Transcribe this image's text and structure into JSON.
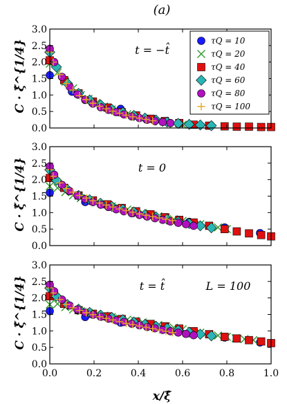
{
  "figure": {
    "title": "(a)",
    "xlabel": "x/ξ̂",
    "ylabel": "C · ξ̂^{1/4}"
  },
  "chart_data": [
    {
      "type": "scatter",
      "annotation": "t = −t̂",
      "xlim": [
        0.0,
        1.0
      ],
      "ylim": [
        0.0,
        3.0
      ],
      "xticks": [],
      "yticks": [
        "0.0",
        "0.5",
        "1.0",
        "1.5",
        "2.0",
        "2.5",
        "3.0"
      ],
      "legend_position": "top-right",
      "series": [
        {
          "name": "τQ = 10",
          "color": "#1a1aff",
          "marker": "circle",
          "x": [
            0.0,
            0.1,
            0.16,
            0.32,
            0.47
          ],
          "y": [
            1.6,
            1.1,
            0.85,
            0.58,
            0.27
          ]
        },
        {
          "name": "τQ = 20",
          "color": "#2a9a2a",
          "marker": "x",
          "x": [
            0.0,
            0.035,
            0.07,
            0.105,
            0.14,
            0.175,
            0.21,
            0.245,
            0.28,
            0.315,
            0.35,
            0.385,
            0.42,
            0.455,
            0.49,
            0.525,
            0.56,
            0.6
          ],
          "y": [
            1.95,
            1.68,
            1.4,
            1.2,
            1.0,
            0.88,
            0.76,
            0.65,
            0.56,
            0.48,
            0.42,
            0.36,
            0.31,
            0.25,
            0.2,
            0.16,
            0.13,
            0.1
          ]
        },
        {
          "name": "τQ = 40",
          "color": "#e01010",
          "marker": "square",
          "x": [
            0.0,
            0.065,
            0.13,
            0.195,
            0.26,
            0.325,
            0.39,
            0.455,
            0.52,
            0.585,
            0.65,
            0.72,
            0.79,
            0.845,
            0.9,
            0.955,
            1.0
          ],
          "y": [
            2.05,
            1.45,
            1.05,
            0.8,
            0.62,
            0.48,
            0.38,
            0.28,
            0.21,
            0.15,
            0.1,
            0.07,
            0.05,
            0.04,
            0.04,
            0.03,
            0.03
          ]
        },
        {
          "name": "τQ = 60",
          "color": "#2ab5b5",
          "marker": "diamond",
          "x": [
            0.0,
            0.03,
            0.08,
            0.13,
            0.18,
            0.23,
            0.28,
            0.33,
            0.38,
            0.43,
            0.48,
            0.53,
            0.58,
            0.63,
            0.68,
            0.73
          ],
          "y": [
            2.3,
            1.85,
            1.35,
            1.05,
            0.85,
            0.7,
            0.57,
            0.47,
            0.38,
            0.3,
            0.24,
            0.18,
            0.14,
            0.11,
            0.09,
            0.07
          ]
        },
        {
          "name": "τQ = 80",
          "color": "#b010c0",
          "marker": "circle",
          "x": [
            0.0,
            0.02,
            0.055,
            0.09,
            0.125,
            0.16,
            0.195,
            0.23,
            0.265,
            0.3,
            0.335,
            0.37,
            0.405,
            0.44,
            0.475,
            0.51,
            0.545
          ],
          "y": [
            2.4,
            2.0,
            1.55,
            1.25,
            1.02,
            0.86,
            0.74,
            0.63,
            0.55,
            0.48,
            0.41,
            0.35,
            0.3,
            0.25,
            0.21,
            0.18,
            0.15
          ]
        },
        {
          "name": "τQ = 100",
          "color": "#e8a820",
          "marker": "plus",
          "x": [
            0.0,
            0.015,
            0.045,
            0.075,
            0.105,
            0.135,
            0.165,
            0.195,
            0.225,
            0.255,
            0.285,
            0.315,
            0.345,
            0.375,
            0.405,
            0.435,
            0.465
          ],
          "y": [
            2.3,
            2.0,
            1.62,
            1.35,
            1.15,
            0.98,
            0.86,
            0.75,
            0.66,
            0.58,
            0.51,
            0.45,
            0.39,
            0.34,
            0.3,
            0.26,
            0.22
          ]
        }
      ]
    },
    {
      "type": "scatter",
      "annotation": "t = 0",
      "xlim": [
        0.0,
        1.0
      ],
      "ylim": [
        0.0,
        3.0
      ],
      "xticks": [],
      "yticks": [
        "0.0",
        "0.5",
        "1.0",
        "1.5",
        "2.0",
        "2.5",
        "3.0"
      ],
      "series": [
        {
          "name": "τQ = 10",
          "color": "#1a1aff",
          "marker": "circle",
          "x": [
            0.0,
            0.16,
            0.32,
            0.47,
            0.63,
            0.79,
            0.95
          ],
          "y": [
            1.6,
            1.32,
            1.12,
            0.9,
            0.72,
            0.55,
            0.38
          ]
        },
        {
          "name": "τQ = 20",
          "color": "#2a9a2a",
          "marker": "x",
          "x": [
            0.0,
            0.035,
            0.07,
            0.105,
            0.14,
            0.175,
            0.21,
            0.245,
            0.28,
            0.315,
            0.35,
            0.385,
            0.42,
            0.455,
            0.49,
            0.525,
            0.56,
            0.6,
            0.64,
            0.68,
            0.72,
            0.76,
            0.8
          ],
          "y": [
            1.8,
            1.75,
            1.62,
            1.52,
            1.44,
            1.37,
            1.31,
            1.25,
            1.19,
            1.14,
            1.09,
            1.04,
            0.99,
            0.94,
            0.89,
            0.85,
            0.8,
            0.75,
            0.7,
            0.65,
            0.6,
            0.55,
            0.5
          ]
        },
        {
          "name": "τQ = 40",
          "color": "#e01010",
          "marker": "square",
          "x": [
            0.0,
            0.065,
            0.13,
            0.195,
            0.26,
            0.325,
            0.39,
            0.455,
            0.52,
            0.585,
            0.65,
            0.72,
            0.79,
            0.845,
            0.9,
            0.955,
            1.0
          ],
          "y": [
            2.05,
            1.75,
            1.52,
            1.37,
            1.25,
            1.14,
            1.04,
            0.95,
            0.86,
            0.78,
            0.7,
            0.6,
            0.5,
            0.43,
            0.37,
            0.32,
            0.28
          ]
        },
        {
          "name": "τQ = 60",
          "color": "#2ab5b5",
          "marker": "diamond",
          "x": [
            0.0,
            0.03,
            0.08,
            0.13,
            0.18,
            0.23,
            0.28,
            0.33,
            0.38,
            0.43,
            0.48,
            0.53,
            0.58,
            0.63,
            0.68,
            0.73
          ],
          "y": [
            2.3,
            1.98,
            1.7,
            1.52,
            1.39,
            1.28,
            1.19,
            1.1,
            1.02,
            0.94,
            0.87,
            0.8,
            0.73,
            0.67,
            0.6,
            0.54
          ]
        },
        {
          "name": "τQ = 80",
          "color": "#b010c0",
          "marker": "circle",
          "x": [
            0.0,
            0.02,
            0.055,
            0.09,
            0.125,
            0.16,
            0.195,
            0.23,
            0.265,
            0.3,
            0.335,
            0.37,
            0.405,
            0.44,
            0.475,
            0.51,
            0.545,
            0.58,
            0.615,
            0.65
          ],
          "y": [
            2.4,
            2.15,
            1.84,
            1.65,
            1.52,
            1.41,
            1.32,
            1.24,
            1.17,
            1.1,
            1.04,
            0.98,
            0.93,
            0.88,
            0.83,
            0.78,
            0.73,
            0.69,
            0.65,
            0.6
          ]
        },
        {
          "name": "τQ = 100",
          "color": "#e8a820",
          "marker": "plus",
          "x": [
            0.0,
            0.015,
            0.045,
            0.075,
            0.105,
            0.135,
            0.165,
            0.195,
            0.225,
            0.255,
            0.285,
            0.315,
            0.345,
            0.375,
            0.405,
            0.435,
            0.465,
            0.495,
            0.525,
            0.555
          ],
          "y": [
            2.3,
            2.1,
            1.9,
            1.73,
            1.62,
            1.52,
            1.44,
            1.36,
            1.29,
            1.23,
            1.17,
            1.11,
            1.06,
            1.01,
            0.96,
            0.92,
            0.88,
            0.84,
            0.8,
            0.76
          ]
        }
      ]
    },
    {
      "type": "scatter",
      "annotation": "t = t̂",
      "annotation2": "L = 100",
      "xlim": [
        0.0,
        1.0
      ],
      "ylim": [
        0.0,
        3.0
      ],
      "xticks": [
        "0.0",
        "0.2",
        "0.4",
        "0.6",
        "0.8",
        "1.0"
      ],
      "yticks": [
        "0.0",
        "0.5",
        "1.0",
        "1.5",
        "2.0",
        "2.5",
        "3.0"
      ],
      "series": [
        {
          "name": "τQ = 10",
          "color": "#1a1aff",
          "marker": "circle",
          "x": [
            0.0,
            0.16,
            0.32,
            0.47,
            0.63,
            0.79,
            0.95
          ],
          "y": [
            1.6,
            1.42,
            1.25,
            1.1,
            0.95,
            0.8,
            0.65
          ]
        },
        {
          "name": "τQ = 20",
          "color": "#2a9a2a",
          "marker": "x",
          "x": [
            0.0,
            0.035,
            0.07,
            0.105,
            0.14,
            0.175,
            0.21,
            0.245,
            0.28,
            0.315,
            0.35,
            0.385,
            0.42,
            0.455,
            0.49,
            0.525,
            0.56,
            0.6,
            0.64,
            0.68,
            0.72,
            0.76,
            0.8,
            0.84,
            0.88,
            0.92
          ],
          "y": [
            1.8,
            1.82,
            1.72,
            1.65,
            1.6,
            1.55,
            1.5,
            1.46,
            1.42,
            1.38,
            1.34,
            1.3,
            1.26,
            1.22,
            1.18,
            1.14,
            1.1,
            1.05,
            1.0,
            0.95,
            0.9,
            0.86,
            0.82,
            0.78,
            0.75,
            0.72
          ]
        },
        {
          "name": "τQ = 40",
          "color": "#e01010",
          "marker": "square",
          "x": [
            0.0,
            0.065,
            0.13,
            0.195,
            0.26,
            0.325,
            0.39,
            0.455,
            0.52,
            0.585,
            0.65,
            0.72,
            0.79,
            0.845,
            0.9,
            0.955,
            1.0
          ],
          "y": [
            2.05,
            1.82,
            1.63,
            1.52,
            1.44,
            1.36,
            1.28,
            1.21,
            1.14,
            1.07,
            0.99,
            0.9,
            0.82,
            0.77,
            0.72,
            0.68,
            0.63
          ]
        },
        {
          "name": "τQ = 60",
          "color": "#2ab5b5",
          "marker": "diamond",
          "x": [
            0.0,
            0.03,
            0.08,
            0.13,
            0.18,
            0.23,
            0.28,
            0.33,
            0.38,
            0.43,
            0.48,
            0.53,
            0.58,
            0.63,
            0.68,
            0.73
          ],
          "y": [
            2.3,
            2.05,
            1.8,
            1.66,
            1.56,
            1.48,
            1.41,
            1.34,
            1.27,
            1.2,
            1.14,
            1.08,
            1.02,
            0.96,
            0.9,
            0.85
          ]
        },
        {
          "name": "τQ = 80",
          "color": "#b010c0",
          "marker": "circle",
          "x": [
            0.0,
            0.02,
            0.055,
            0.09,
            0.125,
            0.16,
            0.195,
            0.23,
            0.265,
            0.3,
            0.335,
            0.37,
            0.405,
            0.44,
            0.475,
            0.51,
            0.545,
            0.58,
            0.615,
            0.65
          ],
          "y": [
            2.4,
            2.2,
            1.95,
            1.77,
            1.65,
            1.56,
            1.49,
            1.43,
            1.37,
            1.32,
            1.27,
            1.22,
            1.17,
            1.12,
            1.08,
            1.03,
            0.99,
            0.95,
            0.91,
            0.87
          ]
        },
        {
          "name": "τQ = 100",
          "color": "#e8a820",
          "marker": "plus",
          "x": [
            0.0,
            0.015,
            0.045,
            0.075,
            0.105,
            0.135,
            0.165,
            0.195,
            0.225,
            0.255,
            0.285,
            0.315,
            0.345,
            0.375,
            0.405,
            0.435,
            0.465,
            0.495,
            0.525,
            0.555
          ],
          "y": [
            2.3,
            2.15,
            1.95,
            1.8,
            1.7,
            1.62,
            1.55,
            1.49,
            1.43,
            1.38,
            1.33,
            1.28,
            1.23,
            1.19,
            1.15,
            1.11,
            1.07,
            1.03,
            0.99,
            0.95
          ]
        }
      ]
    }
  ]
}
